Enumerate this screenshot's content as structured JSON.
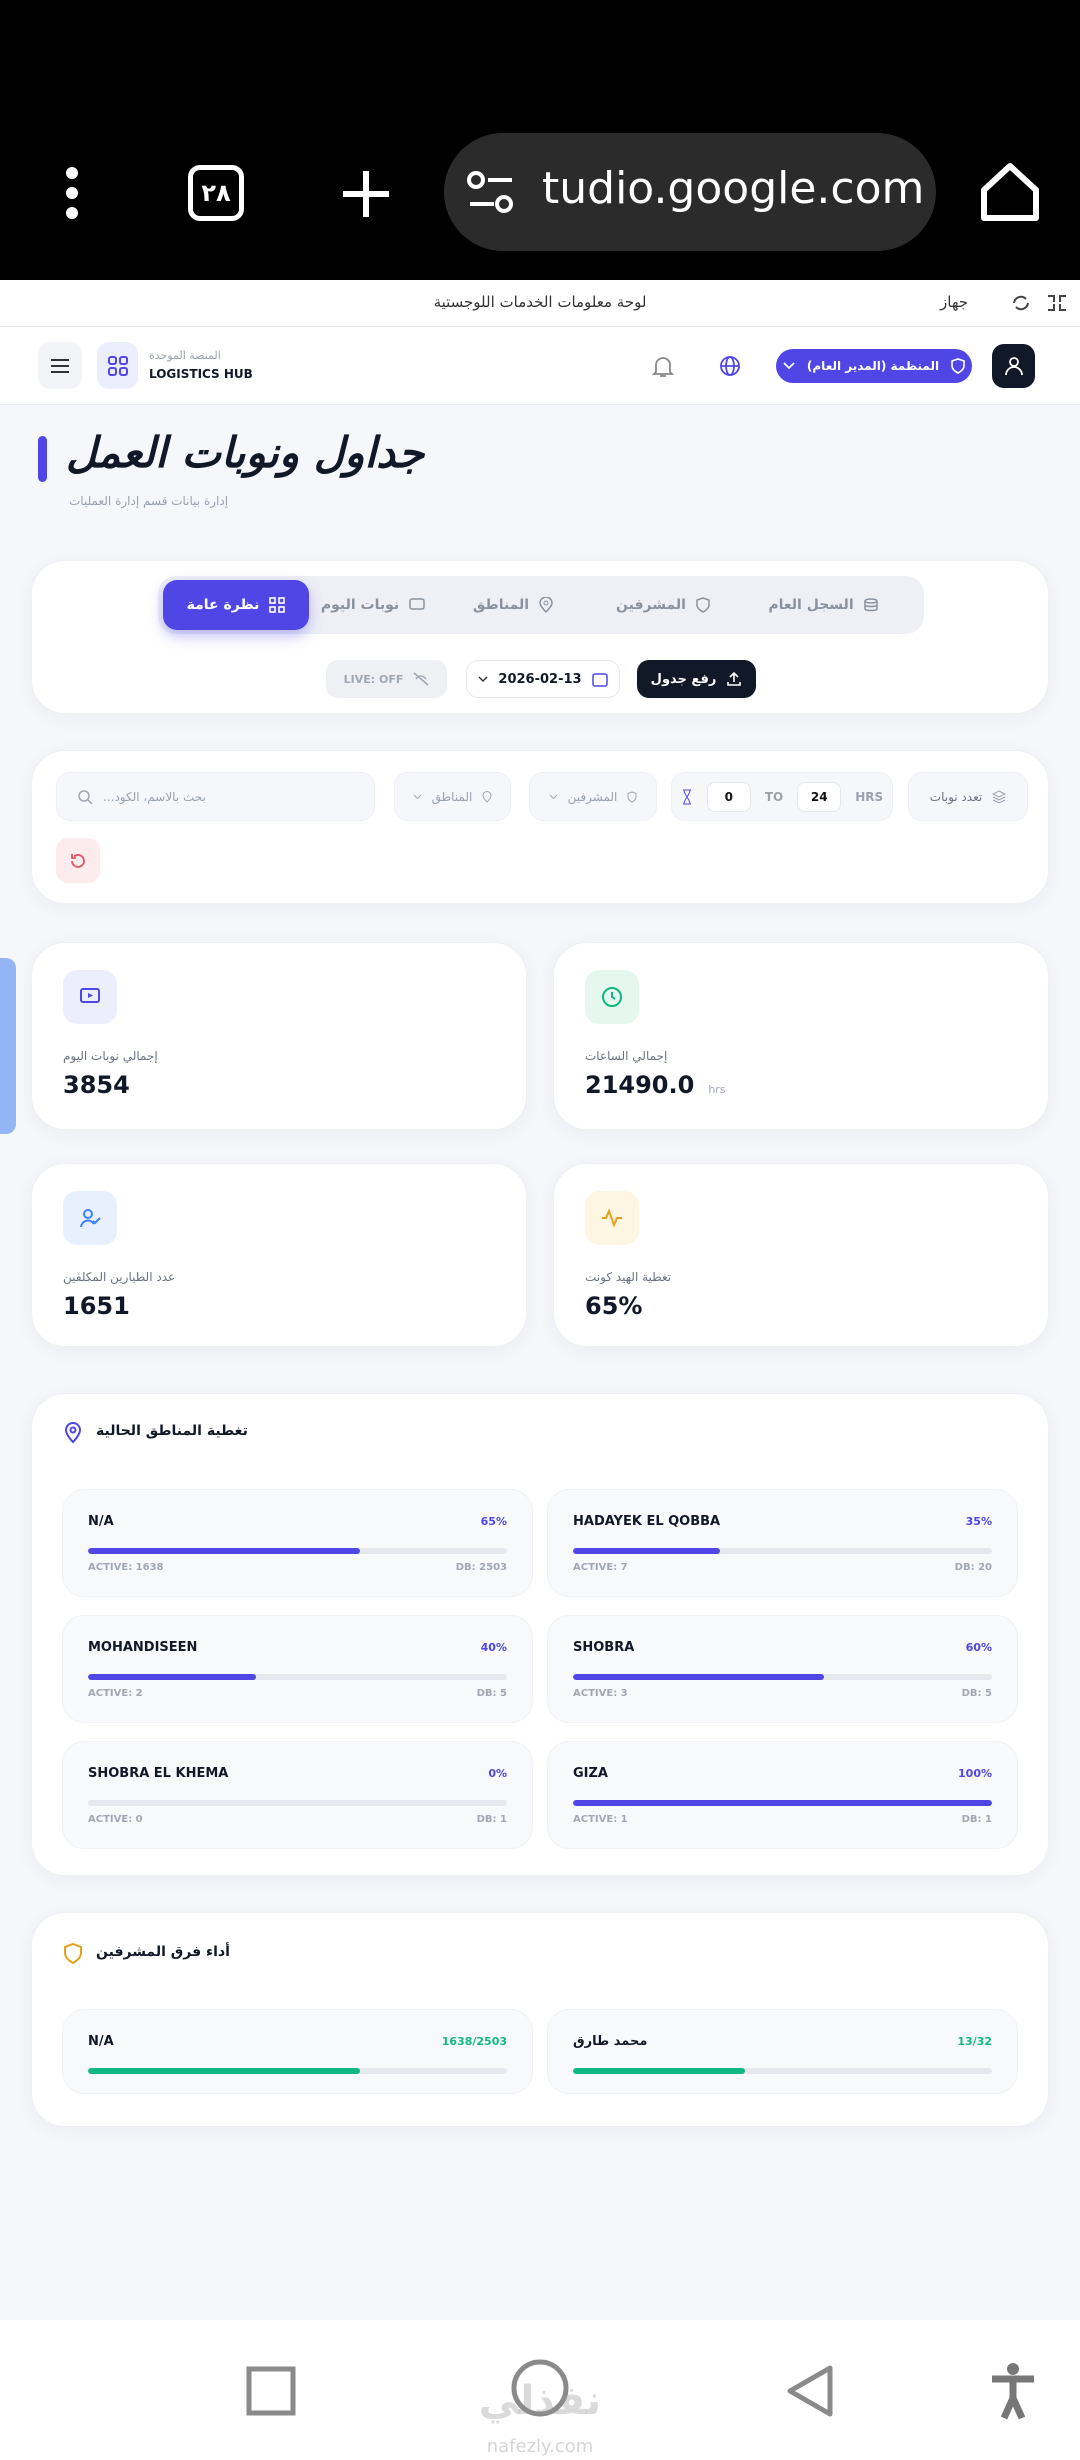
{
  "browser": {
    "tab_count": "٢٨",
    "url": "tudio.google.com"
  },
  "app_bar": {
    "title": "لوحة معلومات الخدمات اللوجستية",
    "device": "جهاز"
  },
  "header": {
    "brand_ar": "المنصة الموحدة",
    "brand_en": "LOGISTICS HUB",
    "role": "المنظمة (المدير العام)"
  },
  "page": {
    "title": "جداول ونوبات العمل",
    "subtitle": "إدارة بيانات قسم إدارة العمليات"
  },
  "tabs": [
    "السجل العام",
    "المشرفين",
    "المناطق",
    "نوبات اليوم",
    "نظرة عامة"
  ],
  "actions": {
    "live": "LIVE: OFF",
    "date": "2026-02-13",
    "upload": "رفع جدول"
  },
  "filters": {
    "search": "بحث بالاسم، الكود...",
    "zones": "المناطق",
    "supervisors": "المشرفين",
    "hours_from": 0,
    "to": "TO",
    "hours_to": 24,
    "hrs": "HRS",
    "multi_shift": "تعدد نوبات"
  },
  "stats": [
    {
      "label": "إجمالي نوبات اليوم",
      "value": 3854
    },
    {
      "label": "إجمالي الساعات",
      "value": "21490.0",
      "unit": "hrs"
    },
    {
      "label": "عدد الطيارين المكلفين",
      "value": 1651
    },
    {
      "label": "تغطية الهيد كونت",
      "value": "65%"
    }
  ],
  "zones": {
    "title": "تغطية المناطق الحالية",
    "items": [
      {
        "name": "N/A",
        "percent": {
          "value": 65,
          "label": "65%"
        },
        "active": "ACTIVE: 1638",
        "db": "DB: 2503"
      },
      {
        "name": "HADAYEK EL QOBBA",
        "percent": {
          "value": 35,
          "label": "35%"
        },
        "active": "ACTIVE: 7",
        "db": "DB: 20"
      },
      {
        "name": "MOHANDISEEN",
        "percent": {
          "value": 40,
          "label": "40%"
        },
        "active": "ACTIVE: 2",
        "db": "DB: 5"
      },
      {
        "name": "SHOBRA",
        "percent": {
          "value": 60,
          "label": "60%"
        },
        "active": "ACTIVE: 3",
        "db": "DB: 5"
      },
      {
        "name": "SHOBRA EL KHEMA",
        "percent": {
          "value": 0,
          "label": "0%"
        },
        "active": "ACTIVE: 0",
        "db": "DB: 1"
      },
      {
        "name": "GIZA",
        "percent": {
          "value": 100,
          "label": "100%"
        },
        "active": "ACTIVE: 1",
        "db": "DB: 1"
      }
    ]
  },
  "supervisors": {
    "title": "أداء فرق المشرفين",
    "items": [
      {
        "name": "N/A",
        "ratio": "1638/2503",
        "progress": 65
      },
      {
        "name": "محمد طارق",
        "ratio": "13/32",
        "progress": 41
      }
    ]
  },
  "watermark": {
    "ar": "نفذلي",
    "en": "nafezly.com"
  }
}
